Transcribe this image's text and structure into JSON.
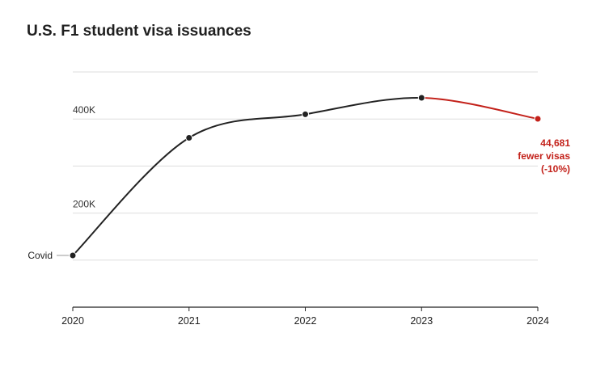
{
  "chart_data": {
    "type": "line",
    "title": "U.S. F1 student visa issuances",
    "x": [
      "2020",
      "2021",
      "2022",
      "2023",
      "2024"
    ],
    "values": [
      110000,
      360000,
      410000,
      445000,
      400319
    ],
    "y_ticks": [
      {
        "value": 400000,
        "label": "400K"
      },
      {
        "value": 200000,
        "label": "200K"
      }
    ],
    "ylim": [
      0,
      500000
    ],
    "grid": true,
    "colors": {
      "main": "#222222",
      "highlight": "#c3211a",
      "grid": "#dddddd"
    },
    "highlight_segment": [
      "2023",
      "2024"
    ],
    "annotations": {
      "covid": {
        "x": "2020",
        "text": "Covid"
      },
      "decline": {
        "x": "2024",
        "lines": [
          "44,681",
          "fewer visas",
          "(-10%)"
        ]
      }
    }
  }
}
